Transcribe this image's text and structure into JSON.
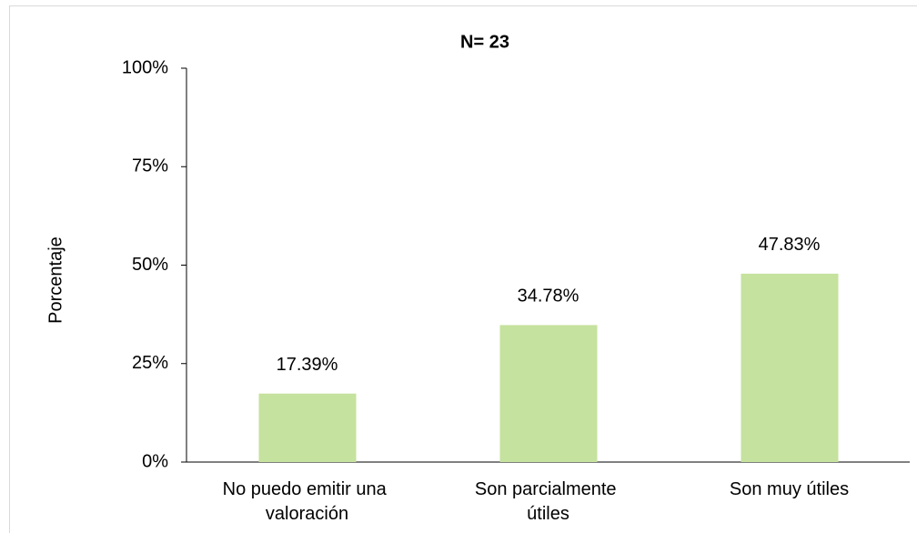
{
  "chart_data": {
    "type": "bar",
    "title": "N= 23",
    "y_label": "Porcentaje",
    "categories": [
      "No puedo emitir una valoración",
      "Son parcialmente útiles",
      "Son muy útiles"
    ],
    "values": [
      17.39,
      34.78,
      47.83
    ],
    "value_labels": [
      "17.39%",
      "34.78%",
      "47.83%"
    ],
    "color": "#c5e29e",
    "ylim": [
      0,
      100
    ],
    "yticks": [
      {
        "value": 0,
        "label": "0%"
      },
      {
        "value": 25,
        "label": "25%"
      },
      {
        "value": 50,
        "label": "50%"
      },
      {
        "value": 75,
        "label": "75%"
      },
      {
        "value": 100,
        "label": "100%"
      }
    ],
    "grid": false
  }
}
